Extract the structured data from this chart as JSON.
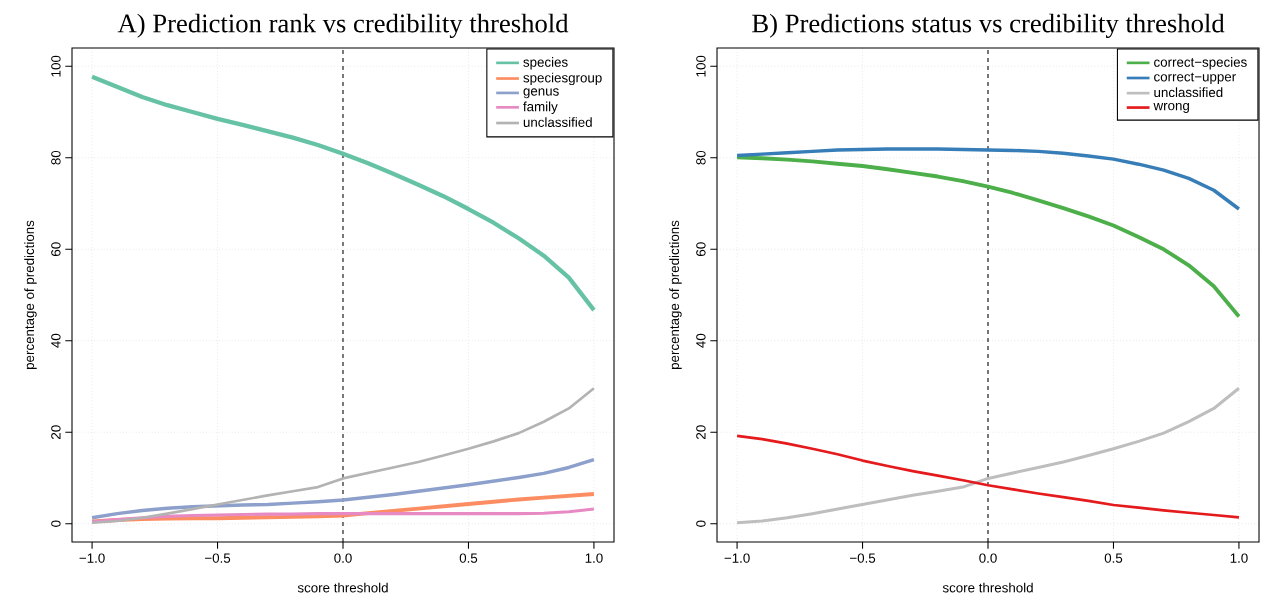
{
  "chart_data": [
    {
      "type": "line",
      "title": "A) Prediction rank vs credibility threshold",
      "xlabel": "score threshold",
      "ylabel": "percentage of predictions",
      "x": [
        -1.0,
        -0.9,
        -0.8,
        -0.7,
        -0.6,
        -0.5,
        -0.4,
        -0.3,
        -0.2,
        -0.1,
        0.0,
        0.1,
        0.2,
        0.3,
        0.4,
        0.5,
        0.6,
        0.7,
        0.8,
        0.9,
        1.0
      ],
      "series": [
        {
          "name": "species",
          "color": "#66c2a5",
          "values": [
            97.7,
            95.5,
            93.3,
            91.5,
            90.0,
            88.5,
            87.2,
            85.8,
            84.4,
            82.8,
            80.9,
            78.8,
            76.5,
            74.1,
            71.6,
            68.8,
            65.8,
            62.4,
            58.6,
            53.8,
            46.7
          ]
        },
        {
          "name": "speciesgroup",
          "color": "#fc8d62",
          "values": [
            0.5,
            0.8,
            1.0,
            1.1,
            1.2,
            1.2,
            1.3,
            1.4,
            1.5,
            1.6,
            1.8,
            2.3,
            2.8,
            3.3,
            3.8,
            4.3,
            4.8,
            5.3,
            5.7,
            6.1,
            6.5
          ]
        },
        {
          "name": "genus",
          "color": "#8da0cb",
          "values": [
            1.3,
            2.2,
            2.9,
            3.4,
            3.7,
            3.9,
            4.1,
            4.2,
            4.5,
            4.8,
            5.2,
            5.8,
            6.4,
            7.1,
            7.8,
            8.5,
            9.3,
            10.1,
            11.0,
            12.3,
            14.0
          ]
        },
        {
          "name": "family",
          "color": "#e78ac3",
          "values": [
            0.4,
            0.9,
            1.3,
            1.6,
            1.8,
            1.9,
            2.0,
            2.1,
            2.1,
            2.2,
            2.2,
            2.2,
            2.2,
            2.2,
            2.2,
            2.2,
            2.2,
            2.2,
            2.3,
            2.6,
            3.2
          ]
        },
        {
          "name": "unclassified",
          "color": "#b3b3b3",
          "values": [
            0.2,
            0.6,
            1.3,
            2.2,
            3.2,
            4.2,
            5.2,
            6.2,
            7.1,
            8.0,
            9.9,
            11.1,
            12.3,
            13.5,
            14.9,
            16.4,
            18.0,
            19.8,
            22.3,
            25.2,
            29.6
          ]
        }
      ],
      "xlim": [
        -1.08,
        1.08
      ],
      "ylim": [
        -4,
        104
      ],
      "xticks": [
        {
          "value": -1.0,
          "label": "−1.0"
        },
        {
          "value": -0.5,
          "label": "−0.5"
        },
        {
          "value": 0.0,
          "label": "0.0"
        },
        {
          "value": 0.5,
          "label": "0.5"
        },
        {
          "value": 1.0,
          "label": "1.0"
        }
      ],
      "yticks": [
        0,
        20,
        40,
        60,
        80,
        100
      ],
      "grid": true,
      "legend": "top right",
      "ref_lines": [
        {
          "axis": "x",
          "value": 0,
          "color": "#000000",
          "line_style": "dashed"
        }
      ]
    },
    {
      "type": "line",
      "title": "B) Predictions status vs credibility threshold",
      "xlabel": "score threshold",
      "ylabel": "percentage of predictions",
      "x": [
        -1.0,
        -0.9,
        -0.8,
        -0.7,
        -0.6,
        -0.5,
        -0.4,
        -0.3,
        -0.2,
        -0.1,
        0.0,
        0.1,
        0.2,
        0.3,
        0.4,
        0.5,
        0.6,
        0.7,
        0.8,
        0.9,
        1.0
      ],
      "series": [
        {
          "name": "correct−species",
          "color": "#4daf4a",
          "values": [
            80.1,
            79.9,
            79.6,
            79.2,
            78.7,
            78.2,
            77.5,
            76.7,
            75.9,
            74.9,
            73.7,
            72.3,
            70.7,
            69.0,
            67.2,
            65.2,
            62.7,
            60.0,
            56.5,
            51.9,
            45.3
          ]
        },
        {
          "name": "correct−upper",
          "color": "#377eb8",
          "values": [
            80.5,
            80.8,
            81.1,
            81.4,
            81.7,
            81.8,
            81.9,
            81.9,
            81.9,
            81.8,
            81.7,
            81.6,
            81.4,
            81.0,
            80.4,
            79.7,
            78.6,
            77.3,
            75.5,
            72.9,
            68.8
          ]
        },
        {
          "name": "unclassified",
          "color": "#bebebe",
          "values": [
            0.2,
            0.6,
            1.3,
            2.2,
            3.2,
            4.2,
            5.2,
            6.2,
            7.1,
            8.0,
            9.9,
            11.1,
            12.3,
            13.5,
            14.9,
            16.4,
            18.0,
            19.8,
            22.3,
            25.2,
            29.6
          ]
        },
        {
          "name": "wrong",
          "color": "#e41a1c",
          "values": [
            19.2,
            18.5,
            17.5,
            16.4,
            15.2,
            13.8,
            12.6,
            11.5,
            10.5,
            9.5,
            8.4,
            7.5,
            6.6,
            5.8,
            5.0,
            4.1,
            3.5,
            2.9,
            2.4,
            1.9,
            1.4
          ]
        }
      ],
      "xlim": [
        -1.08,
        1.08
      ],
      "ylim": [
        -4,
        104
      ],
      "xticks": [
        {
          "value": -1.0,
          "label": "−1.0"
        },
        {
          "value": -0.5,
          "label": "−0.5"
        },
        {
          "value": 0.0,
          "label": "0.0"
        },
        {
          "value": 0.5,
          "label": "0.5"
        },
        {
          "value": 1.0,
          "label": "1.0"
        }
      ],
      "yticks": [
        0,
        20,
        40,
        60,
        80,
        100
      ],
      "grid": true,
      "legend": "top right",
      "ref_lines": [
        {
          "axis": "x",
          "value": 0,
          "color": "#000000",
          "line_style": "dashed"
        }
      ]
    }
  ]
}
